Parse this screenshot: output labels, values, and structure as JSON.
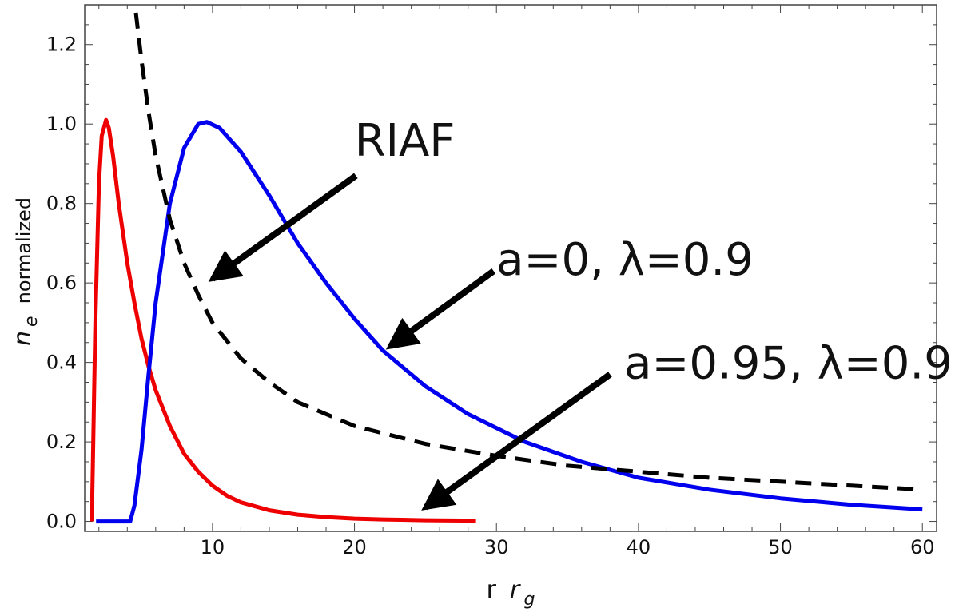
{
  "chart_data": {
    "type": "line",
    "xlabel": {
      "main": "r",
      "sub": "r",
      "subscript": "g"
    },
    "ylabel": {
      "main": "n",
      "subscript": "e",
      "rest": "normalized"
    },
    "xlim": [
      1,
      61
    ],
    "ylim": [
      -0.025,
      1.3
    ],
    "xticks": [
      10,
      20,
      30,
      40,
      50,
      60
    ],
    "xtick_labels": [
      "10",
      "20",
      "30",
      "40",
      "50",
      "60"
    ],
    "yticks": [
      0.0,
      0.2,
      0.4,
      0.6,
      0.8,
      1.0,
      1.2
    ],
    "ytick_labels": [
      "0.0",
      "0.2",
      "0.4",
      "0.6",
      "0.8",
      "1.0",
      "1.2"
    ],
    "grid": false,
    "legend": "none",
    "series": [
      {
        "color": "#ee0000",
        "style": "solid",
        "x": [
          1.5,
          1.6,
          1.75,
          2.0,
          2.2,
          2.5,
          2.7,
          3.0,
          3.4,
          4.0,
          4.5,
          5.0,
          5.5,
          6.0,
          7.0,
          8.0,
          9.0,
          10.0,
          11.0,
          12.0,
          14.0,
          16.0,
          18.0,
          20.0,
          22.0,
          25.0,
          28.5
        ],
        "y": [
          0.0,
          0.2,
          0.5,
          0.85,
          0.97,
          1.01,
          0.99,
          0.92,
          0.8,
          0.65,
          0.55,
          0.46,
          0.39,
          0.33,
          0.24,
          0.17,
          0.125,
          0.09,
          0.065,
          0.048,
          0.028,
          0.017,
          0.011,
          0.007,
          0.005,
          0.003,
          0.002
        ]
      },
      {
        "color": "#0000ee",
        "style": "solid",
        "x": [
          1.8,
          4.2,
          4.5,
          5.0,
          5.5,
          6.0,
          7.0,
          8.0,
          9.0,
          9.6,
          10.5,
          12.0,
          14.0,
          16.0,
          18.0,
          20.0,
          22.0,
          25.0,
          28.0,
          32.0,
          36.0,
          40.0,
          45.0,
          50.0,
          55.0,
          60.0
        ],
        "y": [
          0.0,
          0.0,
          0.04,
          0.18,
          0.37,
          0.55,
          0.8,
          0.94,
          1.0,
          1.005,
          0.99,
          0.93,
          0.82,
          0.7,
          0.6,
          0.51,
          0.43,
          0.34,
          0.27,
          0.2,
          0.15,
          0.11,
          0.08,
          0.058,
          0.042,
          0.03
        ]
      },
      {
        "color": "#000000",
        "style": "dashed",
        "x": [
          4.6,
          5.0,
          5.5,
          6.0,
          6.5,
          7.0,
          8.0,
          9.0,
          10.0,
          12.0,
          14.0,
          16.0,
          18.0,
          20.0,
          25.0,
          30.0,
          35.0,
          40.0,
          45.0,
          50.0,
          55.0,
          60.0
        ],
        "y": [
          1.28,
          1.16,
          1.03,
          0.92,
          0.84,
          0.76,
          0.65,
          0.57,
          0.5,
          0.41,
          0.35,
          0.3,
          0.27,
          0.24,
          0.195,
          0.165,
          0.14,
          0.125,
          0.11,
          0.1,
          0.09,
          0.08
        ]
      }
    ],
    "annotations": [
      {
        "text": "RIAF",
        "tx": 20.0,
        "ty": 0.92,
        "arrow_from": [
          20.1,
          0.87
        ],
        "arrow_to": [
          10.0,
          0.61
        ]
      },
      {
        "text": "a=0, λ=0.9",
        "tx": 30.0,
        "ty": 0.62,
        "arrow_from": [
          29.8,
          0.63
        ],
        "arrow_to": [
          22.5,
          0.44
        ]
      },
      {
        "text": "a=0.95, λ=0.9",
        "tx": 39.0,
        "ty": 0.36,
        "arrow_from": [
          38.0,
          0.37
        ],
        "arrow_to": [
          25.0,
          0.035
        ]
      }
    ]
  }
}
